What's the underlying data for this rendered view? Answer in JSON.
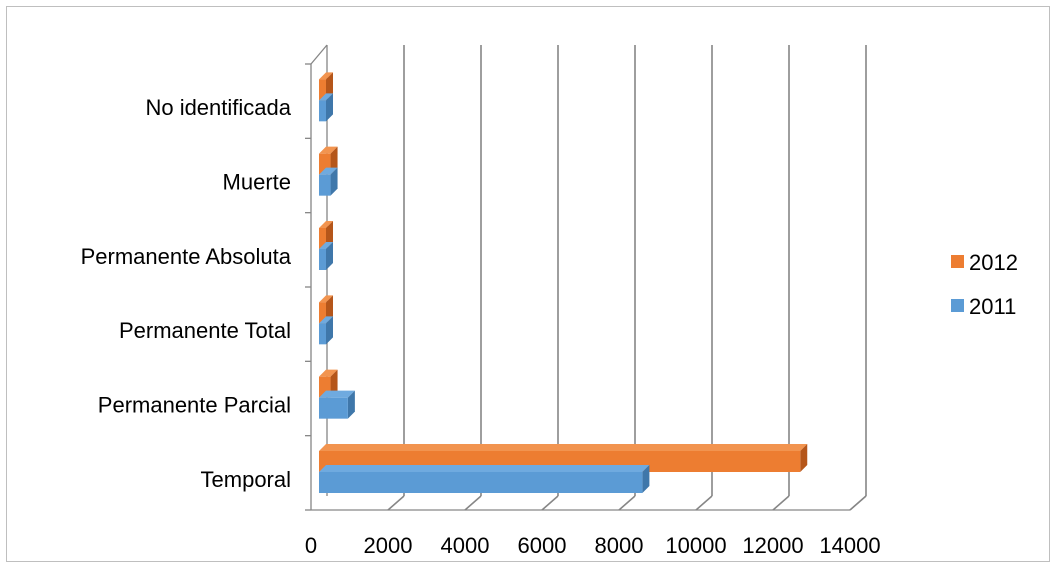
{
  "colors": {
    "s2011_front": "#5B9BD5",
    "s2011_top": "#6FAADF",
    "s2011_side": "#3F77AA",
    "s2012_front": "#ED7D31",
    "s2012_top": "#F2944F",
    "s2012_side": "#B5561A",
    "gridline": "#868686",
    "frame": "#bfbfbf"
  },
  "chart_data": {
    "type": "bar",
    "orientation": "horizontal",
    "style": "3d-clustered",
    "categories": [
      "Temporal",
      "Permanente Parcial",
      "Permanente Total",
      "Permanente Absoluta",
      "Muerte",
      "No identificada"
    ],
    "series": [
      {
        "name": "2011",
        "values": [
          8400,
          750,
          20,
          20,
          300,
          20
        ]
      },
      {
        "name": "2012",
        "values": [
          12500,
          300,
          20,
          20,
          300,
          20
        ]
      }
    ],
    "xticks": [
      "0",
      "2000",
      "4000",
      "6000",
      "8000",
      "10000",
      "12000",
      "14000"
    ],
    "xlim": [
      0,
      14000
    ],
    "grid": true,
    "legend": "right",
    "title": "",
    "xlabel": "",
    "ylabel": ""
  }
}
